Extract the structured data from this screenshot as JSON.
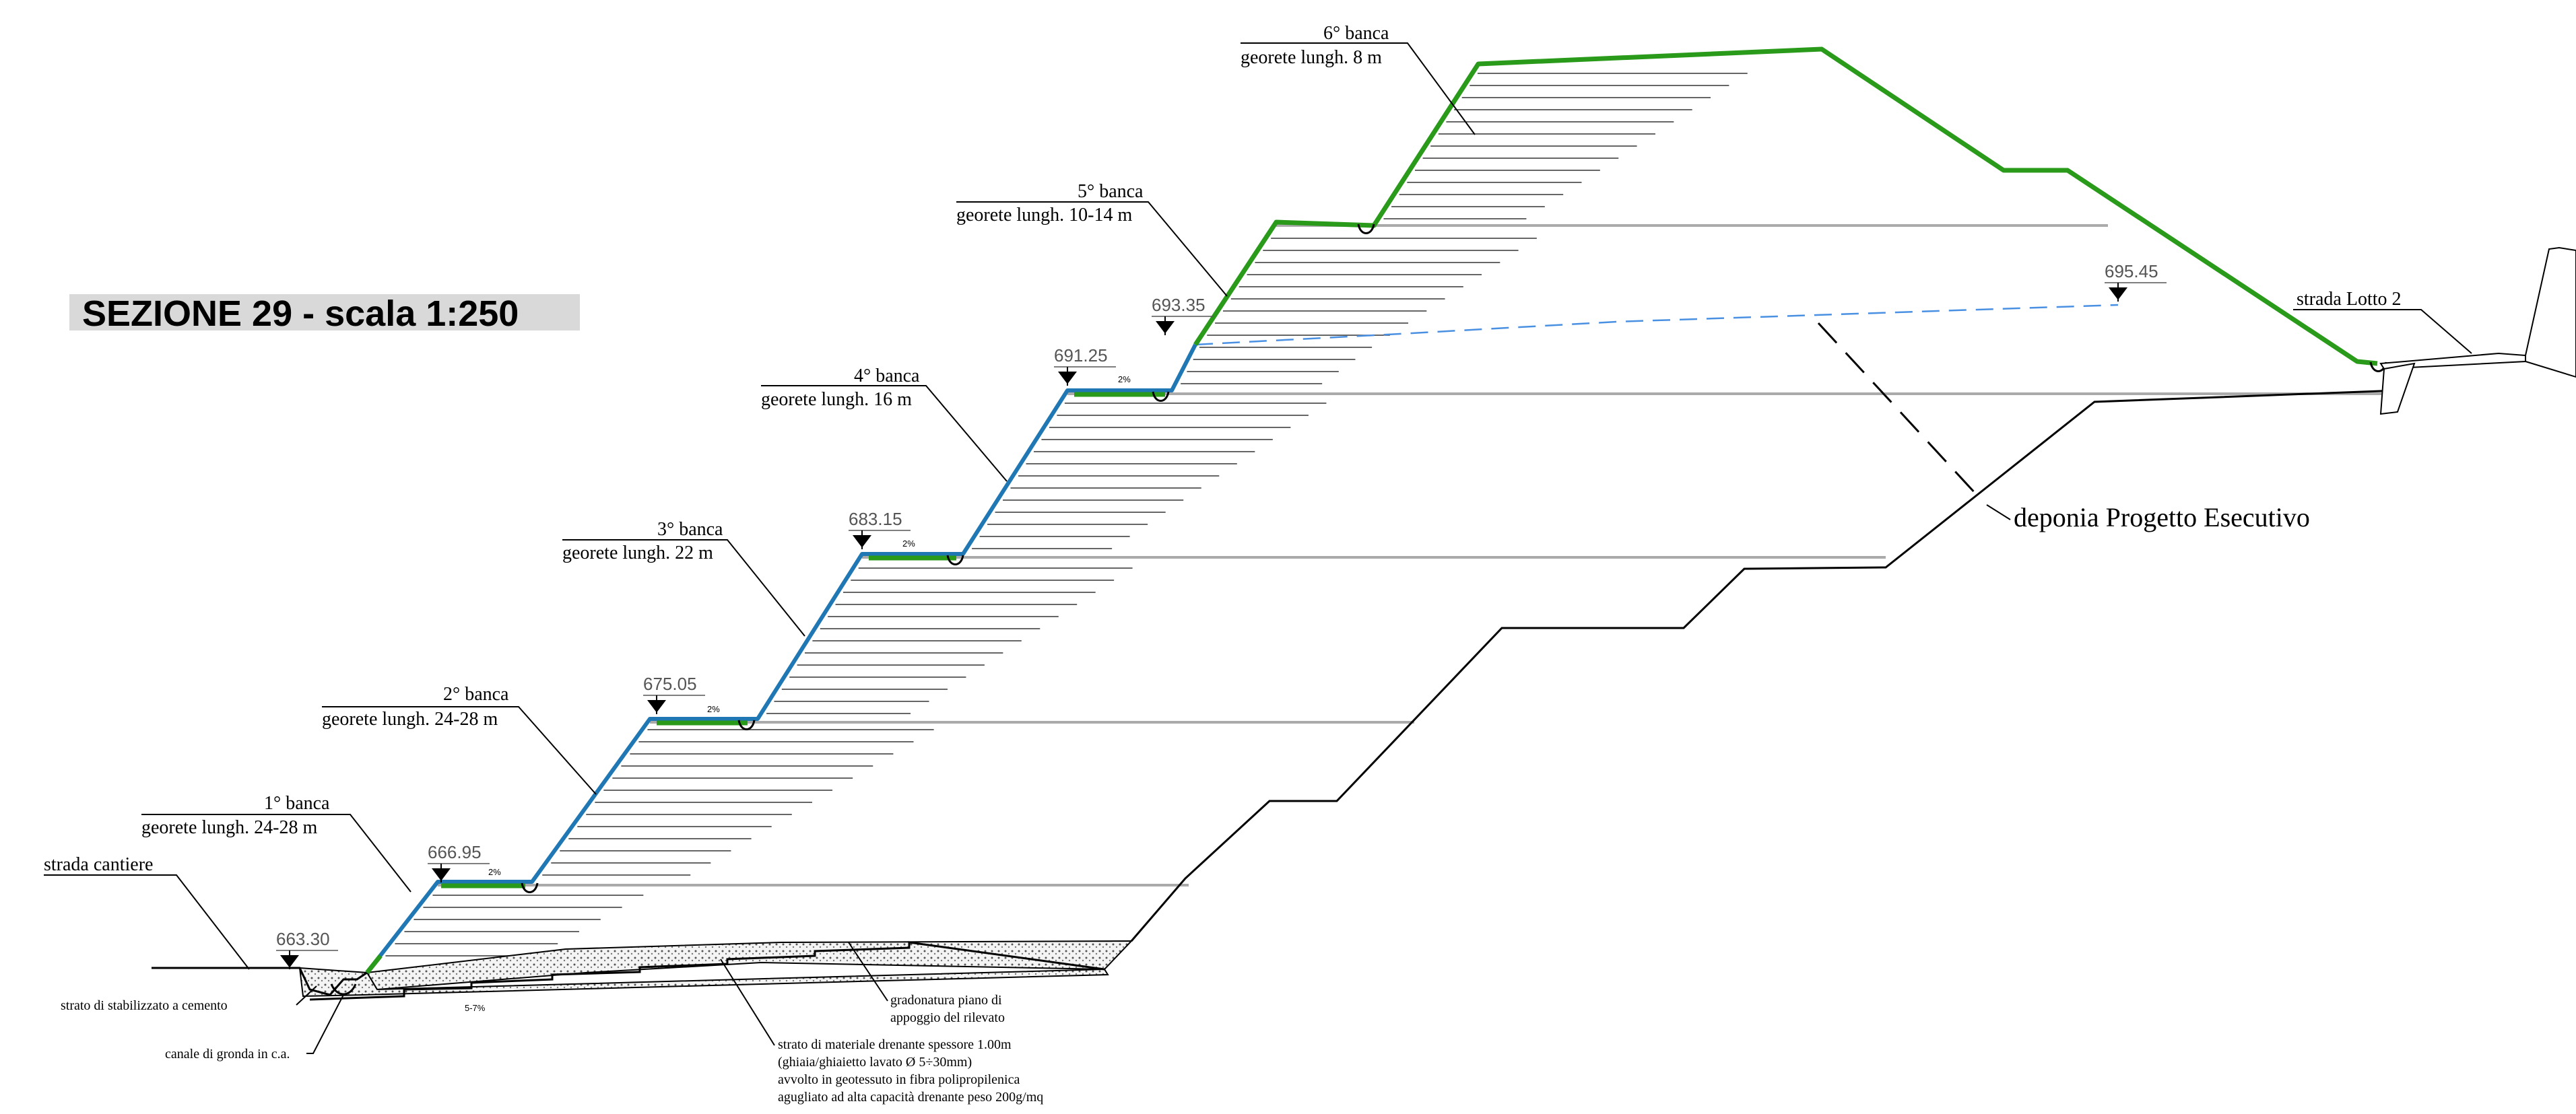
{
  "title": "SEZIONE 29 - scala 1:250",
  "benches": [
    {
      "name": "1° banca",
      "geogrid": "georete lungh. 24-28 m"
    },
    {
      "name": "2° banca",
      "geogrid": "georete lungh. 24-28 m"
    },
    {
      "name": "3° banca",
      "geogrid": "georete lungh. 22 m"
    },
    {
      "name": "4° banca",
      "geogrid": "georete lungh. 16 m"
    },
    {
      "name": "5° banca",
      "geogrid": "georete lungh. 10-14 m"
    },
    {
      "name": "6° banca",
      "geogrid": "georete lungh. 8 m"
    }
  ],
  "elevations": [
    "663.30",
    "666.95",
    "675.05",
    "683.15",
    "691.25",
    "693.35",
    "695.45"
  ],
  "slope_labels": {
    "bench": "2%",
    "base": "5-7%"
  },
  "labels": {
    "strada_cantiere": "strada cantiere",
    "strada_lotto": "strada Lotto 2",
    "deponia": "deponia Progetto Esecutivo",
    "stabilizzato": "strato di stabilizzato a cemento",
    "canale": "canale di gronda in c.a.",
    "gradonatura_1": "gradonatura piano di",
    "gradonatura_2": "appoggio del rilevato",
    "drenante_1": "strato di materiale drenante spessore 1.00m",
    "drenante_2": "(ghiaia/ghiaietto lavato Ø 5÷30mm)",
    "drenante_3": "avvolto in geotessuto in fibra polipropilenica",
    "drenante_4": "agugliato ad alta capacità drenante peso 200g/mq"
  },
  "colors": {
    "face_blue": "#1f77b4",
    "face_green": "#2a9a1a",
    "water_line": "#4a90e2",
    "title_bg": "#d9d9d9"
  }
}
